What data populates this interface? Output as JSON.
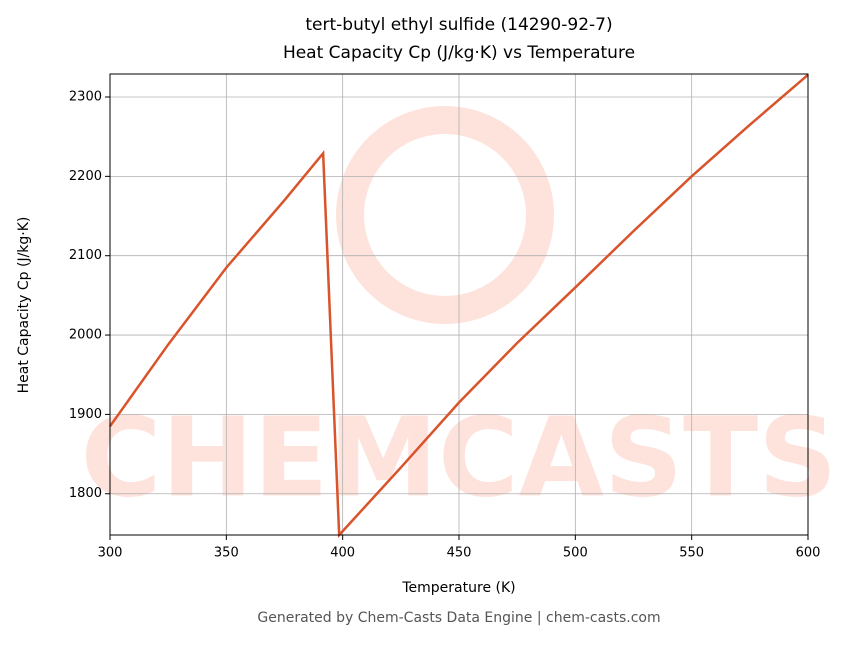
{
  "chart_data": {
    "type": "line",
    "title": "tert-butyl ethyl sulfide (14290-92-7)",
    "subtitle": "Heat Capacity Cp (J/kg·K) vs Temperature",
    "x_label": "Temperature (K)",
    "y_label": "Heat Capacity Cp (J/kg·K)",
    "footer": "Generated by Chem-Casts Data Engine | chem-casts.com",
    "watermark": "CHEMCASTS",
    "x": [
      300,
      325,
      350,
      375,
      391.6,
      398.5,
      425,
      450,
      475,
      500,
      525,
      550,
      575,
      600
    ],
    "series": [
      {
        "name": "Cp",
        "color": "#d9532b",
        "values": [
          1885,
          1988,
          2085,
          2170,
          2229,
          1748,
          1833,
          1915,
          1990,
          2060,
          2131,
          2200,
          2265,
          2328
        ]
      }
    ],
    "xlim": [
      300,
      600
    ],
    "ylim": [
      1748,
      2329
    ],
    "xticks": [
      300,
      350,
      400,
      450,
      500,
      550,
      600
    ],
    "yticks": [
      1800,
      1900,
      2000,
      2100,
      2200,
      2300
    ],
    "grid": true
  }
}
